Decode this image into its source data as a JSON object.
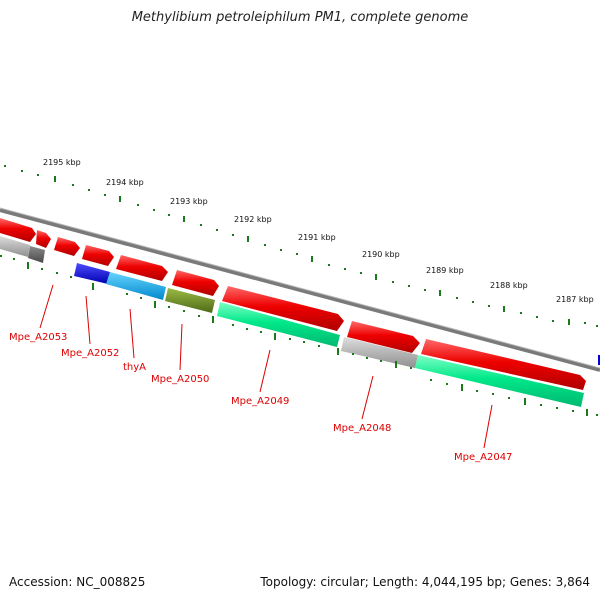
{
  "title": "Methylibium petroleiphilum PM1, complete genome",
  "footer": {
    "accession": "Accession: NC_008825",
    "summary": "Topology: circular; Length: 4,044,195 bp; Genes: 3,864"
  },
  "scale_labels": [
    "2195 kbp",
    "2194 kbp",
    "2193 kbp",
    "2192 kbp",
    "2191 kbp",
    "2190 kbp",
    "2189 kbp",
    "2188 kbp",
    "2187 kbp"
  ],
  "gene_labels": [
    "Mpe_A2053",
    "Mpe_A2052",
    "thyA",
    "Mpe_A2050",
    "Mpe_A2049",
    "Mpe_A2048",
    "Mpe_A2047"
  ],
  "colors": {
    "forward_cds": "#ee0000",
    "reverse_cds": "#00e88a",
    "blue": "#0000dd",
    "cyan": "#00aaee",
    "olive": "#6b8e23",
    "grey": "#b5b5b5",
    "dark_grey": "#666666",
    "backbone": "#7a7a7a",
    "ticks": "#1a7a1a",
    "label": "#dd0000"
  }
}
